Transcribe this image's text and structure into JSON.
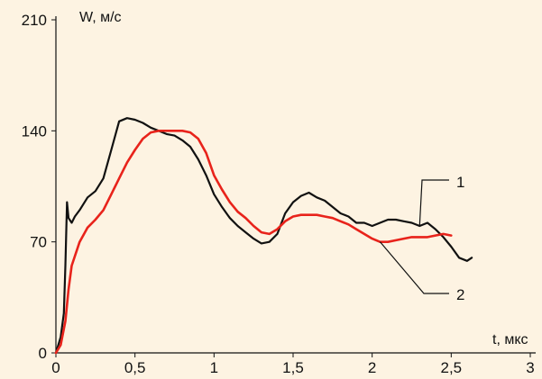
{
  "chart_data": {
    "type": "line",
    "xlabel": "t, мкс",
    "ylabel": "W, м/с",
    "xlim": [
      0,
      3
    ],
    "ylim": [
      0,
      210
    ],
    "x_ticks": [
      "0",
      "0,5",
      "1",
      "1,5",
      "2",
      "2,5",
      "3"
    ],
    "y_ticks": [
      "0",
      "70",
      "140",
      "210"
    ],
    "grid": false,
    "series": [
      {
        "name": "1",
        "color": "#111111",
        "x": [
          0,
          0.03,
          0.05,
          0.06,
          0.07,
          0.08,
          0.1,
          0.12,
          0.15,
          0.2,
          0.25,
          0.3,
          0.35,
          0.4,
          0.45,
          0.5,
          0.55,
          0.6,
          0.65,
          0.7,
          0.75,
          0.8,
          0.85,
          0.9,
          0.95,
          1.0,
          1.05,
          1.1,
          1.15,
          1.2,
          1.25,
          1.3,
          1.35,
          1.4,
          1.45,
          1.5,
          1.55,
          1.6,
          1.65,
          1.7,
          1.75,
          1.8,
          1.85,
          1.9,
          1.95,
          2.0,
          2.05,
          2.1,
          2.15,
          2.2,
          2.25,
          2.3,
          2.35,
          2.4,
          2.45,
          2.5,
          2.55,
          2.6,
          2.63
        ],
        "y": [
          0,
          10,
          25,
          55,
          95,
          85,
          82,
          86,
          90,
          98,
          102,
          110,
          128,
          146,
          148,
          147,
          145,
          142,
          140,
          138,
          137,
          134,
          130,
          122,
          112,
          100,
          92,
          85,
          80,
          76,
          72,
          69,
          70,
          75,
          88,
          95,
          99,
          101,
          98,
          96,
          92,
          88,
          86,
          82,
          82,
          80,
          82,
          84,
          84,
          83,
          82,
          80,
          82,
          78,
          73,
          67,
          60,
          58,
          60
        ]
      },
      {
        "name": "2",
        "color": "#e8231b",
        "x": [
          0,
          0.03,
          0.06,
          0.08,
          0.1,
          0.15,
          0.2,
          0.25,
          0.3,
          0.35,
          0.4,
          0.45,
          0.5,
          0.55,
          0.6,
          0.65,
          0.7,
          0.75,
          0.8,
          0.85,
          0.9,
          0.95,
          1.0,
          1.05,
          1.1,
          1.15,
          1.2,
          1.25,
          1.3,
          1.35,
          1.4,
          1.45,
          1.5,
          1.55,
          1.6,
          1.65,
          1.7,
          1.75,
          1.8,
          1.85,
          1.9,
          1.95,
          2.0,
          2.05,
          2.1,
          2.15,
          2.2,
          2.25,
          2.3,
          2.35,
          2.4,
          2.45,
          2.5
        ],
        "y": [
          0,
          5,
          20,
          40,
          55,
          70,
          79,
          84,
          90,
          100,
          110,
          120,
          128,
          135,
          139,
          140,
          140,
          140,
          140,
          139,
          135,
          126,
          112,
          103,
          95,
          89,
          85,
          80,
          76,
          75,
          78,
          83,
          86,
          87,
          87,
          87,
          86,
          85,
          83,
          81,
          78,
          75,
          72,
          70,
          70,
          71,
          72,
          73,
          73,
          73,
          74,
          75,
          74
        ]
      }
    ],
    "annotations": [
      "1",
      "2"
    ]
  }
}
